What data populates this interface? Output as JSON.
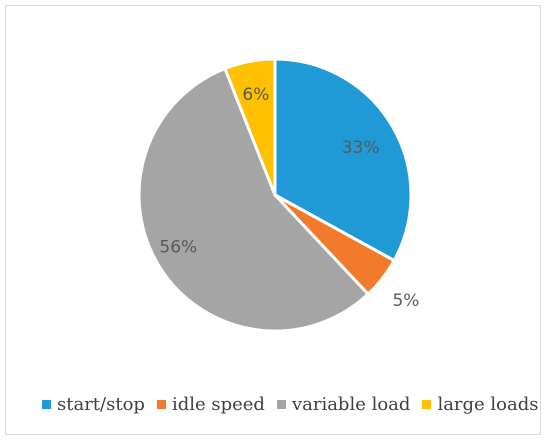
{
  "chart_data": {
    "type": "pie",
    "title": "",
    "slices": [
      {
        "label": "start/stop",
        "value": 33,
        "display": "33%",
        "color": "#1f9ad6"
      },
      {
        "label": "idle speed",
        "value": 5,
        "display": "5%",
        "color": "#f27a2b"
      },
      {
        "label": "variable load",
        "value": 56,
        "display": "56%",
        "color": "#a5a5a5"
      },
      {
        "label": "large loads",
        "value": 6,
        "display": "6%",
        "color": "#ffc000"
      }
    ],
    "legend_position": "bottom",
    "start_angle": "12 o'clock",
    "direction": "clockwise"
  }
}
